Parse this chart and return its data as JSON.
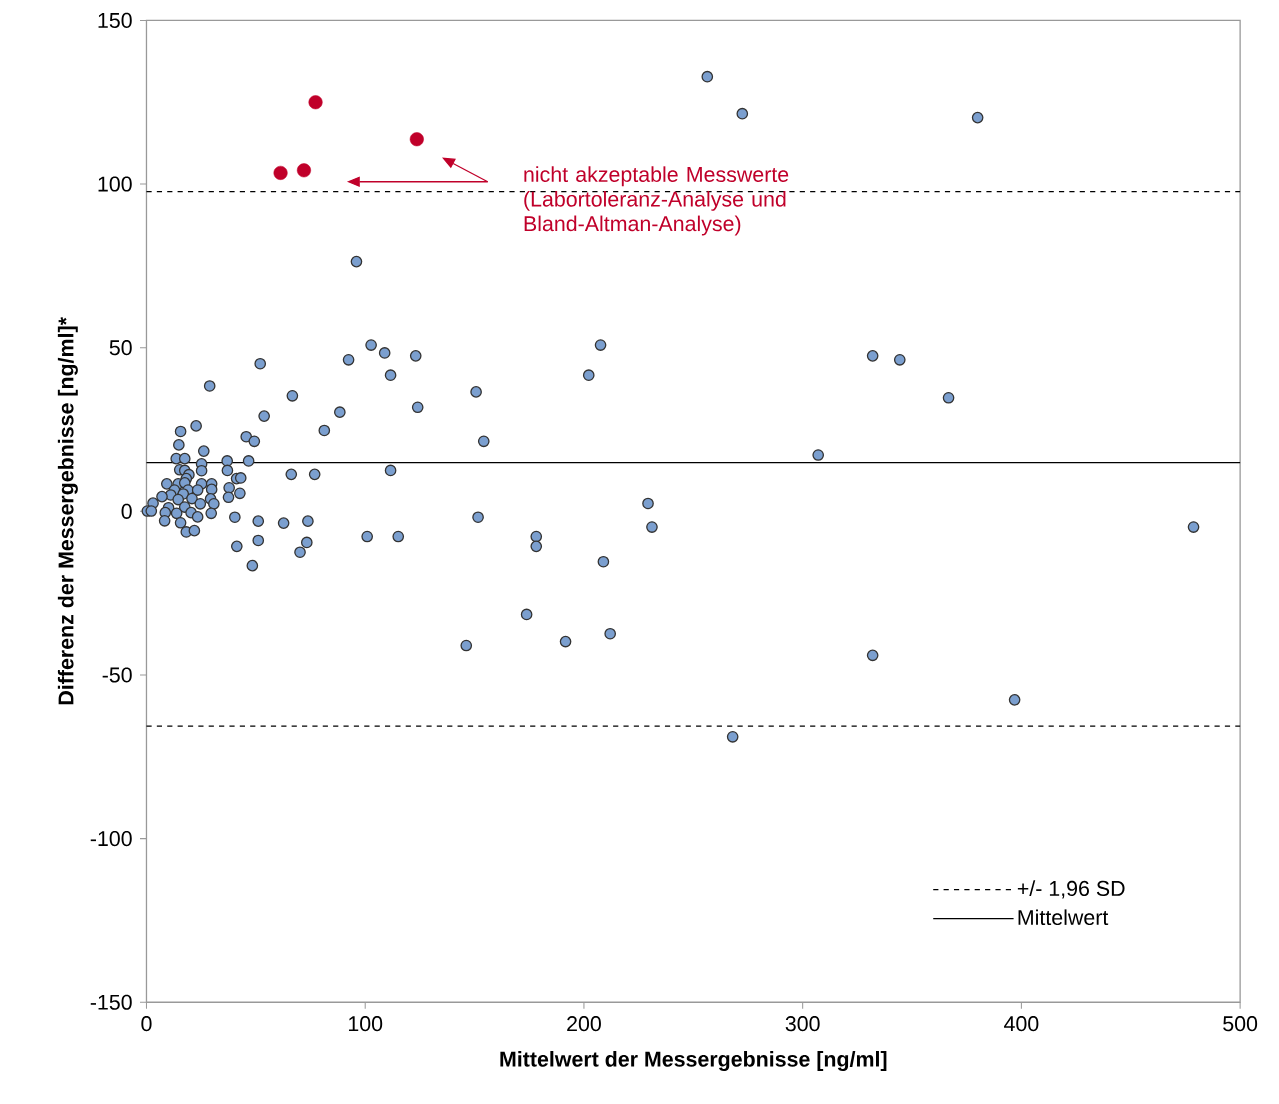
{
  "chart_data": {
    "type": "scatter",
    "xlabel": "Mittelwert der Messergebnisse [ng/ml]",
    "ylabel": "Differenz der Messergebnisse [ng/ml]*",
    "xlim": [
      0,
      500
    ],
    "ylim": [
      -150,
      150
    ],
    "xticks": [
      0,
      100,
      200,
      300,
      400,
      500
    ],
    "yticks": [
      -150,
      -100,
      -50,
      0,
      50,
      100,
      150
    ],
    "grid": false,
    "legend": "bottom right",
    "series": [
      {
        "color": "#7b9fcf",
        "x": [
          256.4,
          272.4,
          380,
          96,
          102.7,
          108.9,
          123.1,
          111.6,
          124,
          92.4,
          88.4,
          81.3,
          66.7,
          53.8,
          52,
          28.9,
          150.7,
          154.2,
          202.2,
          207.6,
          332,
          344.4,
          366.7,
          307.1,
          111.6,
          76.9,
          66.2,
          229.3,
          231.1,
          478.7,
          151.6,
          100.9,
          115.1,
          178.2,
          178.2,
          208.9,
          173.8,
          146.2,
          191.6,
          212,
          332,
          396.9,
          268,
          73.8,
          73.3,
          70.2,
          62.7,
          51.1,
          51.1,
          48.4,
          41.3,
          40.4,
          22.7,
          15.6,
          14.8,
          45.6,
          49.3,
          26.2,
          13.6,
          17.5,
          25.2,
          36.9,
          46.7,
          15.2,
          17.5,
          25.2,
          37,
          19.4,
          18.2,
          41.2,
          43.1,
          9.3,
          14.5,
          17.5,
          25.2,
          29.8,
          37.8,
          42.7,
          37.5,
          12.8,
          19,
          23.4,
          29.8,
          11.1,
          7.1,
          16.8,
          20.8,
          24.6,
          29.3,
          30.8,
          3,
          10.1,
          14.5,
          17.5,
          0.4,
          2.2,
          8.6,
          13.8,
          20.4,
          29.6,
          8.3,
          15.6,
          23.4,
          18.2,
          21.9
        ],
        "values": [
          132.8,
          121.5,
          120.3,
          76.3,
          50.8,
          48.4,
          47.5,
          41.6,
          31.8,
          46.3,
          30.3,
          24.7,
          35.3,
          29.1,
          45.1,
          38.3,
          36.5,
          21.4,
          41.6,
          50.8,
          47.5,
          46.3,
          34.7,
          17.2,
          12.5,
          11.3,
          11.3,
          2.4,
          -4.8,
          -4.8,
          -1.8,
          -7.7,
          -7.7,
          -7.7,
          -10.7,
          -15.4,
          -31.5,
          -41,
          -39.8,
          -37.4,
          -44,
          -57.6,
          -68.9,
          -3,
          -9.5,
          -12.5,
          -3.6,
          -3,
          -8.9,
          -16.6,
          -10.7,
          -1.8,
          26.1,
          24.4,
          20.3,
          22.8,
          21.4,
          18.4,
          16.1,
          16.1,
          14.5,
          15.4,
          15.4,
          12.7,
          12.5,
          12.4,
          12.5,
          11.2,
          10,
          10,
          10.2,
          8.4,
          8.4,
          8.7,
          8.4,
          8.4,
          7.2,
          5.5,
          4.3,
          6.5,
          6.5,
          6.5,
          6.7,
          5,
          4.5,
          5.3,
          3.9,
          2.3,
          3.8,
          2.3,
          2.5,
          1.1,
          3.6,
          1.3,
          0.1,
          0.1,
          -0.4,
          -0.6,
          -0.4,
          -0.6,
          -2.9,
          -3.5,
          -1.7,
          -6.3,
          -5.9
        ]
      },
      {
        "color": "#c0002a",
        "x": [
          61.3,
          72,
          77.3,
          123.6
        ],
        "values": [
          103.4,
          104.2,
          125,
          113.7
        ]
      }
    ],
    "ref_lines": [
      {
        "axis": "y",
        "value": 97.7,
        "label": "+/- 1,96 SD",
        "line_style": "dashed",
        "color": "#000000"
      },
      {
        "axis": "y",
        "value": -65.6,
        "line_style": "dashed",
        "color": "#000000"
      },
      {
        "axis": "y",
        "value": 14.9,
        "label": "Mittelwert",
        "line_style": "solid",
        "color": "#000000"
      }
    ],
    "annotations": [
      "nicht akzeptable Messwerte (Labortoleranz-Analyse und Bland-Altman-Analyse)"
    ]
  }
}
